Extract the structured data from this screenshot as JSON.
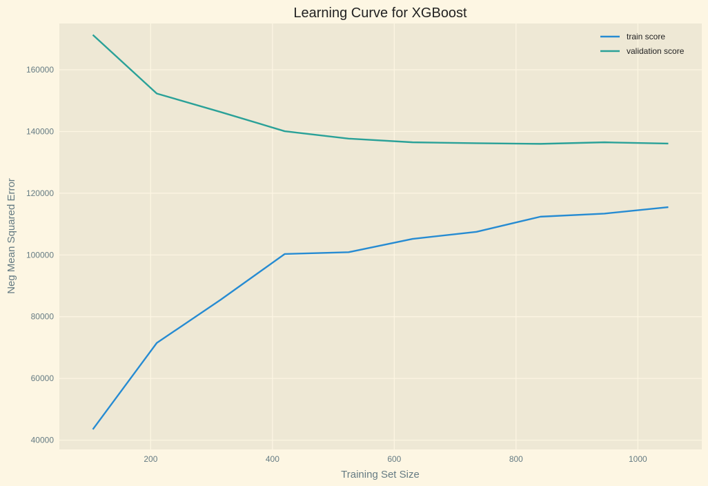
{
  "chart_data": {
    "type": "line",
    "title": "Learning Curve for XGBoost",
    "xlabel": "Training Set Size",
    "ylabel": "Neg Mean Squared Error",
    "x": [
      105,
      210,
      315,
      420,
      525,
      630,
      735,
      840,
      945,
      1050
    ],
    "xlim": [
      50,
      1105
    ],
    "ylim": [
      37000,
      175000
    ],
    "xticks": [
      200,
      400,
      600,
      800,
      1000
    ],
    "yticks": [
      40000,
      60000,
      80000,
      100000,
      120000,
      140000,
      160000
    ],
    "grid": true,
    "legend_position": "top-right",
    "series": [
      {
        "name": "train score",
        "color": "#268bd2",
        "values": [
          43500,
          71500,
          85500,
          100300,
          100900,
          105200,
          107500,
          112400,
          113400,
          115500
        ]
      },
      {
        "name": "validation score",
        "color": "#2aa198",
        "values": [
          171300,
          152300,
          146300,
          140100,
          137700,
          136500,
          136200,
          136000,
          136500,
          136100
        ]
      }
    ]
  }
}
